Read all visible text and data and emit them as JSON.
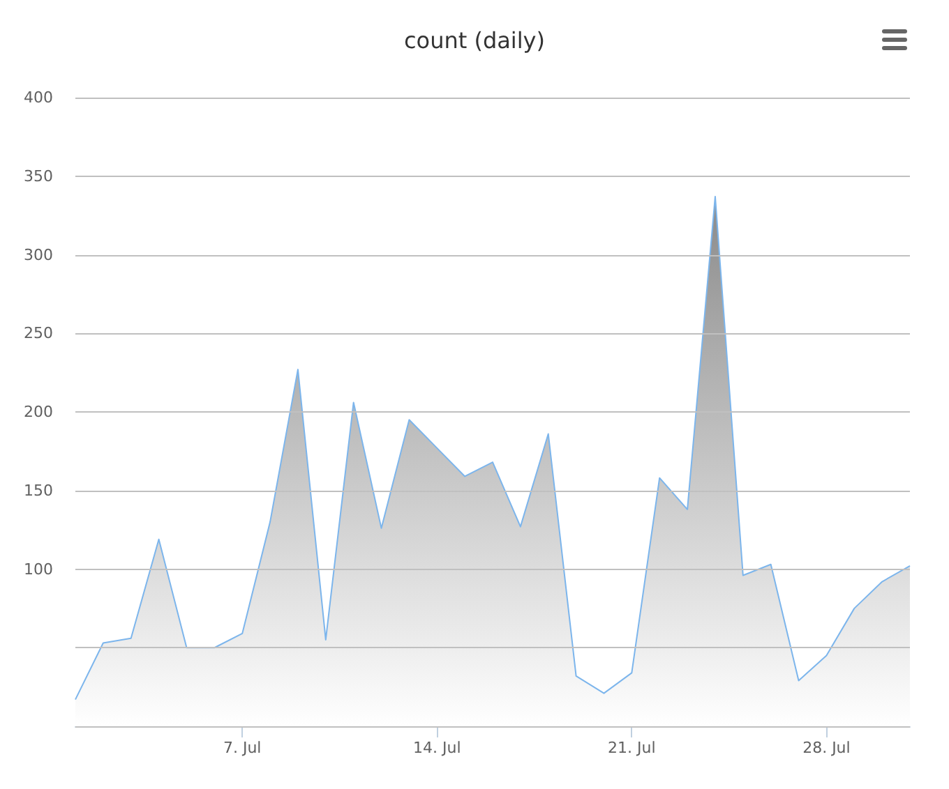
{
  "chart_data": {
    "type": "area",
    "title": "count (daily)",
    "categories": [
      null,
      null,
      null,
      null,
      null,
      null,
      "7. Jul",
      null,
      null,
      null,
      null,
      null,
      null,
      "14. Jul",
      null,
      null,
      null,
      null,
      null,
      null,
      "21. Jul",
      null,
      null,
      null,
      null,
      null,
      null,
      "28. Jul",
      null,
      null,
      null
    ],
    "series": [
      {
        "color": "#7cb5ec",
        "values": [
          17,
          53,
          56,
          119,
          50,
          50,
          59,
          130,
          227,
          55,
          206,
          126,
          195,
          177,
          159,
          168,
          127,
          186,
          32,
          21,
          34,
          158,
          138,
          337,
          96,
          103,
          29,
          45,
          75,
          92,
          102
        ]
      }
    ],
    "ylim": [
      0,
      400
    ],
    "yticks": [
      {
        "value": 0,
        "label": null
      },
      {
        "value": 50,
        "label": null
      },
      100,
      150,
      200,
      250,
      300,
      350,
      400
    ],
    "grid": "y",
    "marker": "none"
  }
}
